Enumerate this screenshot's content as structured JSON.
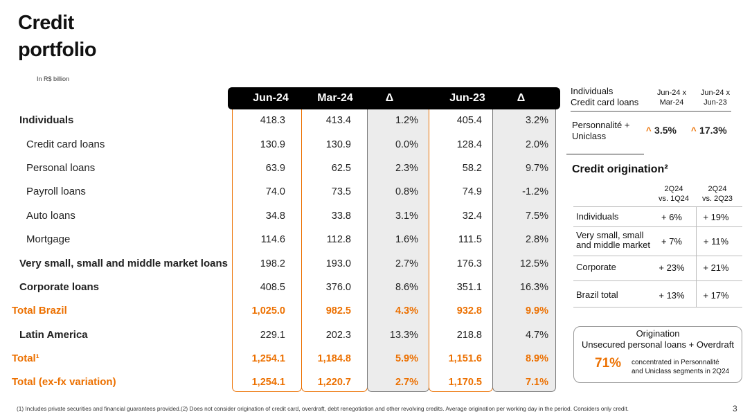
{
  "title_line1": "Credit",
  "title_line2": "portfolio",
  "unit": "In R$ billion",
  "main_table": {
    "headers": [
      "Jun-24",
      "Mar-24",
      "Δ",
      "Jun-23",
      "Δ"
    ],
    "rows": [
      {
        "label": "Individuals",
        "values": [
          "418.3",
          "413.4",
          "1.2%",
          "405.4",
          "3.2%"
        ]
      },
      {
        "label": "Credit card loans",
        "values": [
          "130.9",
          "130.9",
          "0.0%",
          "128.4",
          "2.0%"
        ]
      },
      {
        "label": "Personal loans",
        "values": [
          "63.9",
          "62.5",
          "2.3%",
          "58.2",
          "9.7%"
        ]
      },
      {
        "label": "Payroll loans",
        "values": [
          "74.0",
          "73.5",
          "0.8%",
          "74.9",
          "-1.2%"
        ]
      },
      {
        "label": "Auto loans",
        "values": [
          "34.8",
          "33.8",
          "3.1%",
          "32.4",
          "7.5%"
        ]
      },
      {
        "label": "Mortgage",
        "values": [
          "114.6",
          "112.8",
          "1.6%",
          "111.5",
          "2.8%"
        ]
      },
      {
        "label": "Very small, small and middle market loans",
        "values": [
          "198.2",
          "193.0",
          "2.7%",
          "176.3",
          "12.5%"
        ]
      },
      {
        "label": "Corporate loans",
        "values": [
          "408.5",
          "376.0",
          "8.6%",
          "351.1",
          "16.3%"
        ]
      },
      {
        "label": "Total Brazil",
        "values": [
          "1,025.0",
          "982.5",
          "4.3%",
          "932.8",
          "9.9%"
        ]
      },
      {
        "label": "Latin America",
        "values": [
          "229.1",
          "202.3",
          "13.3%",
          "218.8",
          "4.7%"
        ]
      },
      {
        "label": "Total¹",
        "values": [
          "1,254.1",
          "1,184.8",
          "5.9%",
          "1,151.6",
          "8.9%"
        ]
      },
      {
        "label": "Total (ex-fx variation)",
        "values": [
          "1,254.1",
          "1,220.7",
          "2.7%",
          "1,170.5",
          "7.1%"
        ]
      }
    ]
  },
  "cc_panel": {
    "title_line1": "Individuals",
    "title_line2": "Credit card loans",
    "col1_line1": "Jun-24 x",
    "col1_line2": "Mar-24",
    "col2_line1": "Jun-24 x",
    "col2_line2": "Jun-23",
    "row_label_line1": "Personnalité +",
    "row_label_line2": "Uniclass",
    "val1": "3.5%",
    "val2": "17.3%"
  },
  "origination": {
    "title": "Credit origination²",
    "col1_line1": "2Q24",
    "col1_line2": "vs. 1Q24",
    "col2_line1": "2Q24",
    "col2_line2": "vs. 2Q23",
    "rows": [
      {
        "label_line1": "Individuals",
        "label_line2": "",
        "v1": "+  6%",
        "v2": "+  19%"
      },
      {
        "label_line1": "Very small, small",
        "label_line2": "and middle market",
        "v1": "+  7%",
        "v2": "+  11%"
      },
      {
        "label_line1": "Corporate",
        "label_line2": "",
        "v1": "+  23%",
        "v2": "+  21%"
      },
      {
        "label_line1": "Brazil total",
        "label_line2": "",
        "v1": "+  13%",
        "v2": "+  17%"
      }
    ]
  },
  "orig_box": {
    "title_line1": "Origination",
    "title_line2": "Unsecured personal loans + Overdraft",
    "pct": "71%",
    "desc_line1": "concentrated in Personnalité",
    "desc_line2": "and Uniclass segments in 2Q24"
  },
  "footnote": "(1) Includes private securities and financial guarantees provided.(2) Does not consider origination of credit card, overdraft, debt renegotiation and other revolving credits. Average origination per working day in the period. Considers only credit.",
  "page_number": "3",
  "colors": {
    "accent": "#ec7000",
    "header_bg": "#000000",
    "delta_bg": "#ececec"
  }
}
